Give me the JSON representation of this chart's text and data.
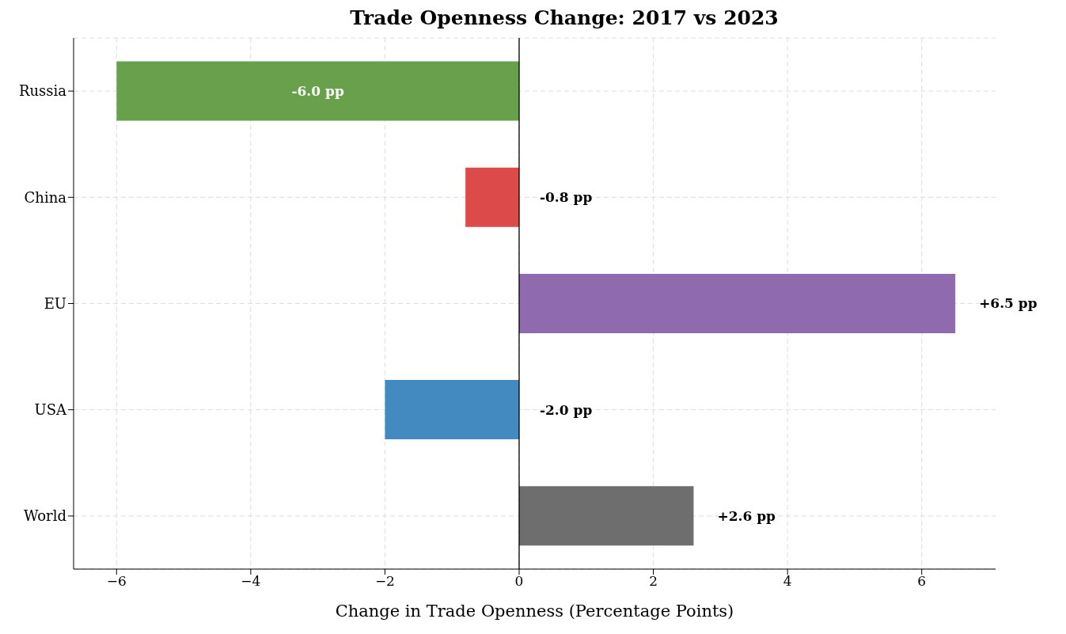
{
  "chart_data": {
    "type": "bar",
    "orientation": "horizontal",
    "title": "Trade Openness Change: 2017 vs 2023",
    "xlabel": "Change in Trade Openness (Percentage Points)",
    "categories": [
      "Russia",
      "China",
      "EU",
      "USA",
      "World"
    ],
    "values": [
      -6.0,
      -0.8,
      6.5,
      -2.0,
      2.6
    ],
    "colors": [
      "#68a04c",
      "#dc4a4a",
      "#8f6aae",
      "#438ac0",
      "#6e6e6e"
    ],
    "value_labels": [
      "-6.0 pp",
      "-0.8 pp",
      "+6.5 pp",
      "-2.0 pp",
      "+2.6 pp"
    ],
    "xlim": [
      -6.64,
      7.1
    ],
    "xticks": [
      {
        "value": -6,
        "label": "−6"
      },
      {
        "value": -4,
        "label": "−4"
      },
      {
        "value": -2,
        "label": "−2"
      },
      0,
      2,
      4,
      6
    ],
    "ref_lines": [
      {
        "axis": "x",
        "value": 0,
        "color": "#000000",
        "line_style": "solid"
      }
    ],
    "grid": true,
    "legend": false
  }
}
